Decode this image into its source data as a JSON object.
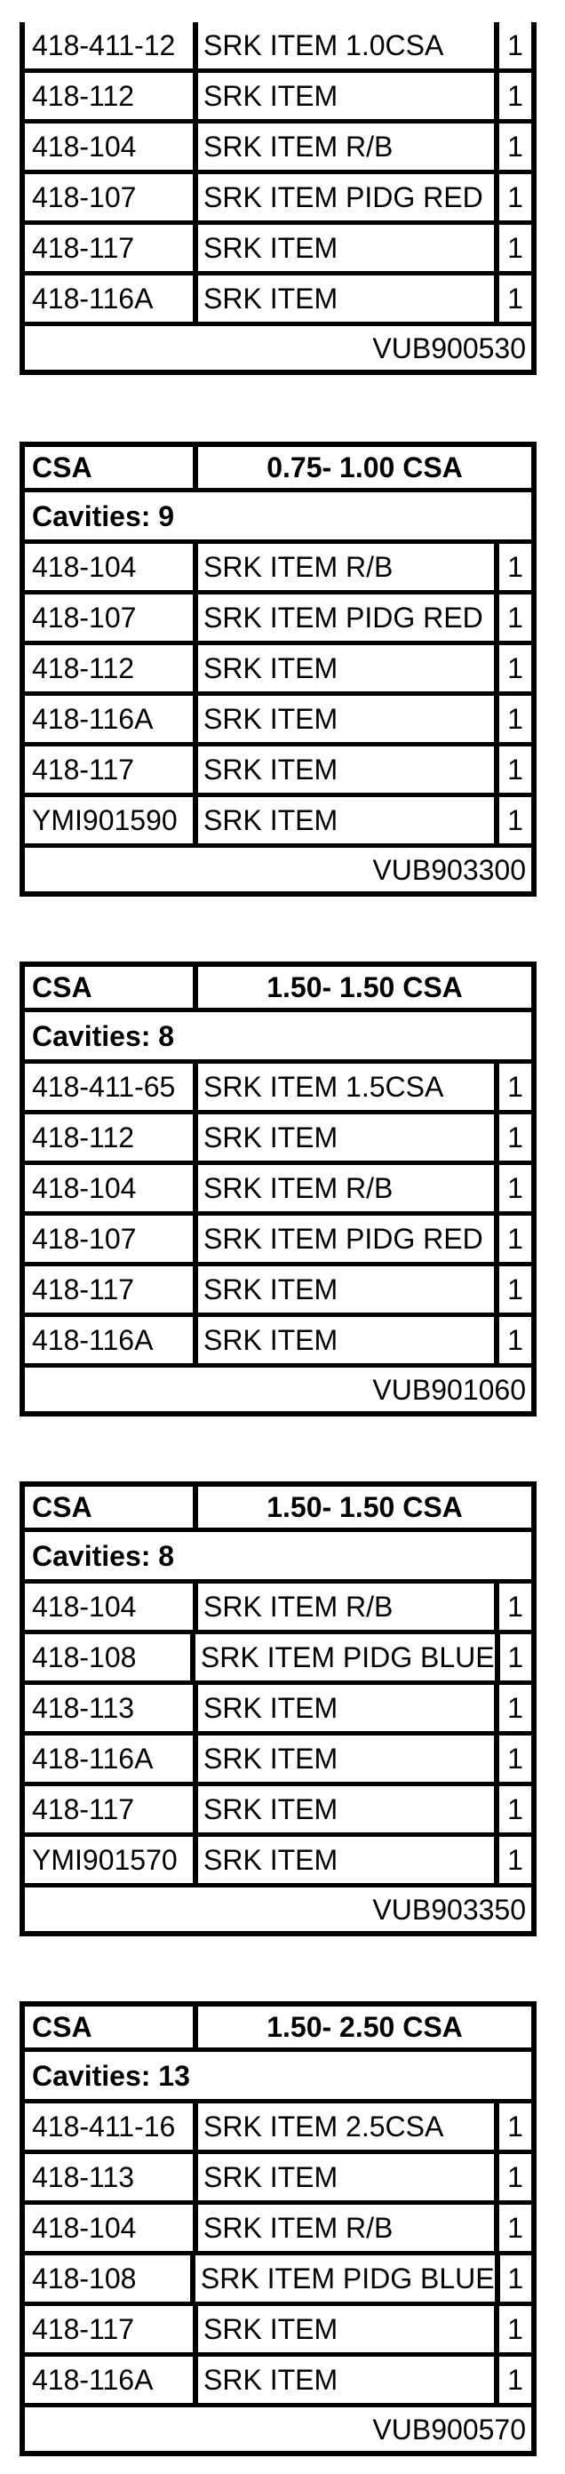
{
  "colors": {
    "ink": "#000000",
    "paper": "#ffffff"
  },
  "tables": [
    {
      "note_clipped_top": "header rows cut off at top edge of image",
      "rows": [
        {
          "part": "418-411-12",
          "desc": "SRK ITEM 1.0CSA",
          "qty": "1"
        },
        {
          "part": "418-112",
          "desc": "SRK ITEM",
          "qty": "1"
        },
        {
          "part": "418-104",
          "desc": "SRK ITEM R/B",
          "qty": "1"
        },
        {
          "part": "418-107",
          "desc": "SRK ITEM PIDG RED",
          "qty": "1"
        },
        {
          "part": "418-117",
          "desc": "SRK ITEM",
          "qty": "1"
        },
        {
          "part": "418-116A",
          "desc": "SRK ITEM",
          "qty": "1"
        }
      ],
      "footer": "VUB900530"
    },
    {
      "header_left": "CSA",
      "header_range": "0.75- 1.00 CSA",
      "cavities": "Cavities: 9",
      "rows": [
        {
          "part": "418-104",
          "desc": "SRK ITEM R/B",
          "qty": "1"
        },
        {
          "part": "418-107",
          "desc": "SRK ITEM PIDG RED",
          "qty": "1"
        },
        {
          "part": "418-112",
          "desc": "SRK ITEM",
          "qty": "1"
        },
        {
          "part": "418-116A",
          "desc": "SRK ITEM",
          "qty": "1"
        },
        {
          "part": "418-117",
          "desc": "SRK ITEM",
          "qty": "1"
        },
        {
          "part": "YMI901590",
          "desc": "SRK ITEM",
          "qty": "1"
        }
      ],
      "footer": "VUB903300"
    },
    {
      "header_left": "CSA",
      "header_range": "1.50- 1.50 CSA",
      "cavities": "Cavities: 8",
      "rows": [
        {
          "part": "418-411-65",
          "desc": "SRK ITEM 1.5CSA",
          "qty": "1"
        },
        {
          "part": "418-112",
          "desc": "SRK ITEM",
          "qty": "1"
        },
        {
          "part": "418-104",
          "desc": "SRK ITEM R/B",
          "qty": "1"
        },
        {
          "part": "418-107",
          "desc": "SRK ITEM PIDG RED",
          "qty": "1"
        },
        {
          "part": "418-117",
          "desc": "SRK ITEM",
          "qty": "1"
        },
        {
          "part": "418-116A",
          "desc": "SRK ITEM",
          "qty": "1"
        }
      ],
      "footer": "VUB901060"
    },
    {
      "header_left": "CSA",
      "header_range": "1.50- 1.50 CSA",
      "cavities": "Cavities: 8",
      "rows": [
        {
          "part": "418-104",
          "desc": "SRK ITEM R/B",
          "qty": "1"
        },
        {
          "part": "418-108",
          "desc": "SRK ITEM PIDG BLUE",
          "qty": "1"
        },
        {
          "part": "418-113",
          "desc": "SRK ITEM",
          "qty": "1"
        },
        {
          "part": "418-116A",
          "desc": "SRK ITEM",
          "qty": "1"
        },
        {
          "part": "418-117",
          "desc": "SRK ITEM",
          "qty": "1"
        },
        {
          "part": "YMI901570",
          "desc": "SRK ITEM",
          "qty": "1"
        }
      ],
      "footer": "VUB903350"
    },
    {
      "header_left": "CSA",
      "header_range": "1.50- 2.50 CSA",
      "cavities": "Cavities: 13",
      "rows": [
        {
          "part": "418-411-16",
          "desc": "SRK ITEM 2.5CSA",
          "qty": "1"
        },
        {
          "part": "418-113",
          "desc": "SRK ITEM",
          "qty": "1"
        },
        {
          "part": "418-104",
          "desc": "SRK ITEM R/B",
          "qty": "1"
        },
        {
          "part": "418-108",
          "desc": "SRK ITEM PIDG BLUE",
          "qty": "1"
        },
        {
          "part": "418-117",
          "desc": "SRK ITEM",
          "qty": "1"
        },
        {
          "part": "418-116A",
          "desc": "SRK ITEM",
          "qty": "1"
        }
      ],
      "footer": "VUB900570"
    }
  ]
}
